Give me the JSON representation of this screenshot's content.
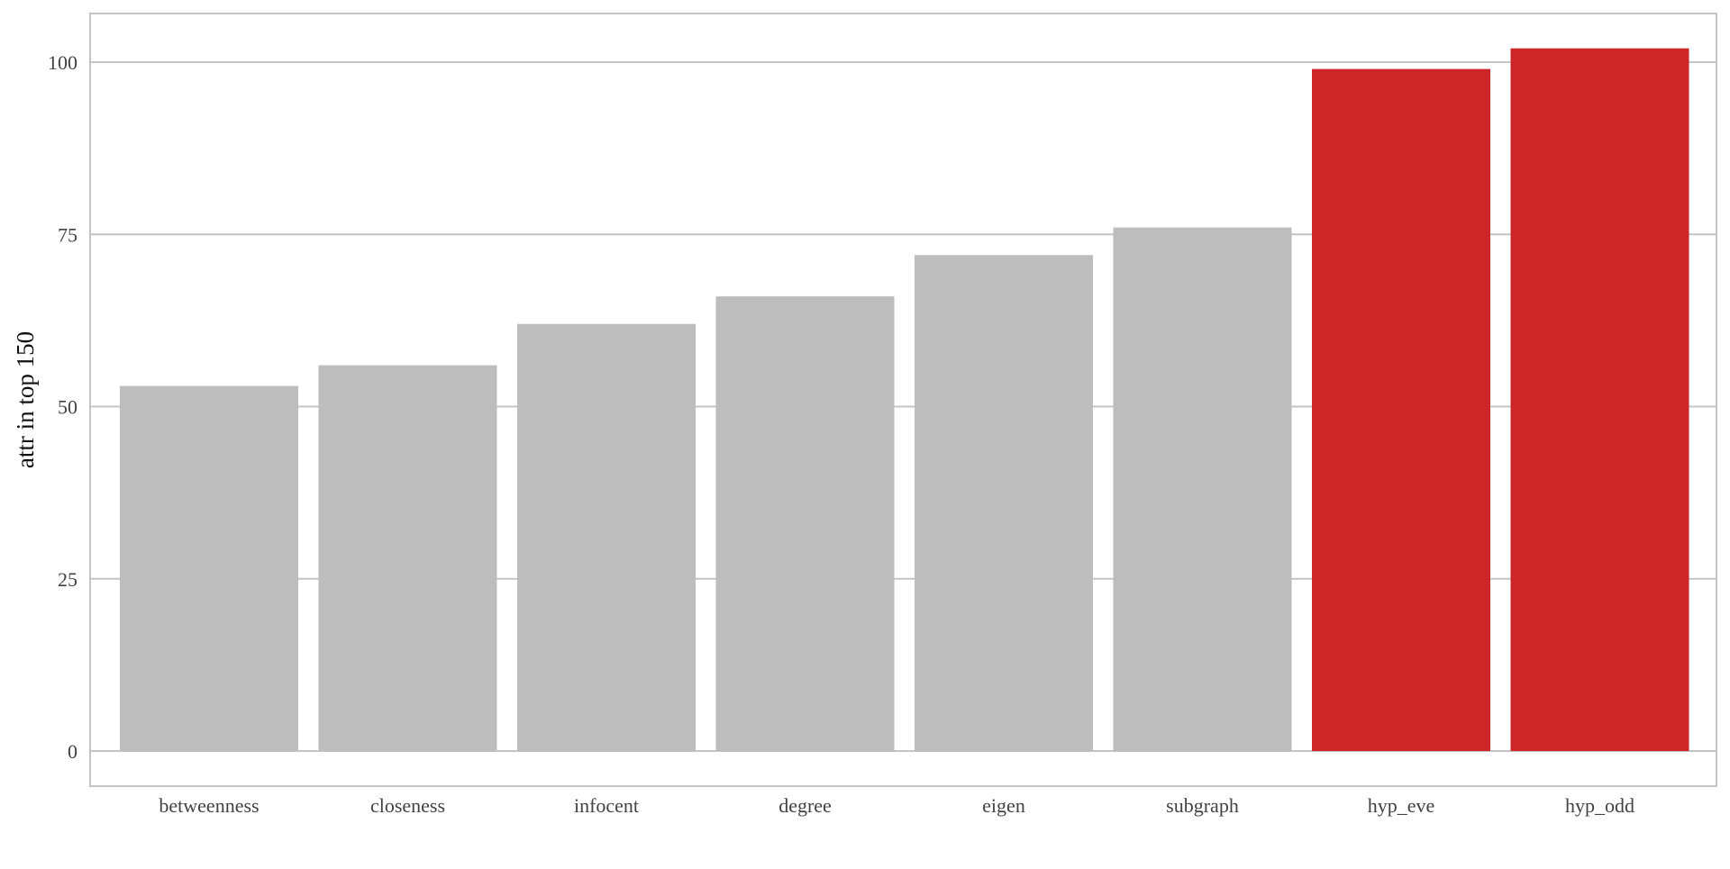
{
  "chart_data": {
    "type": "bar",
    "categories": [
      "betweenness",
      "closeness",
      "infocent",
      "degree",
      "eigen",
      "subgraph",
      "hyp_eve",
      "hyp_odd"
    ],
    "values": [
      53,
      56,
      62,
      66,
      72,
      76,
      99,
      102
    ],
    "highlighted": [
      false,
      false,
      false,
      false,
      false,
      false,
      true,
      true
    ],
    "ylabel": "attr in top 150",
    "xlabel": "",
    "title": "",
    "ylim": [
      -5,
      107
    ],
    "yticks": [
      0,
      25,
      50,
      75,
      100
    ],
    "grid": "horizontal",
    "colors": {
      "default_bar": "#bdbdbd",
      "highlight_bar": "#cd2628",
      "grid": "#c4c4c4",
      "frame": "#c4c4c4",
      "tick_text": "#424242",
      "label_text": "#111111"
    }
  }
}
